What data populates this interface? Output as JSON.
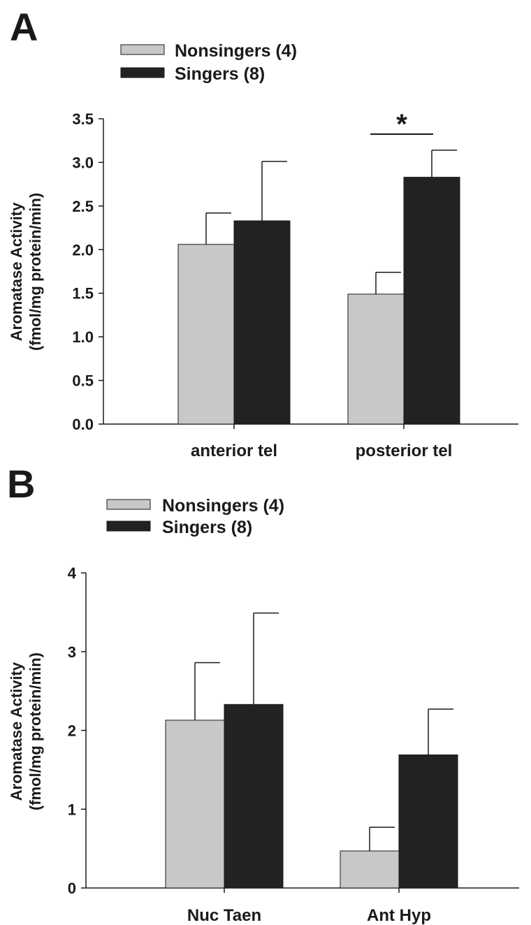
{
  "chart_data": [
    {
      "panel": "A",
      "type": "bar",
      "categories": [
        "anterior tel",
        "posterior tel"
      ],
      "series": [
        {
          "name": "Nonsingers (4)",
          "color": "#c8c8c8",
          "values": [
            2.06,
            1.49
          ],
          "errors": [
            0.36,
            0.25
          ]
        },
        {
          "name": "Singers (8)",
          "color": "#222222",
          "values": [
            2.33,
            2.83
          ],
          "errors": [
            0.68,
            0.31
          ]
        }
      ],
      "ylabel": [
        "Aromatase Activity",
        "(fmol/mg protein/min)"
      ],
      "ylim": [
        0,
        3.5
      ],
      "yticks": [
        "0.0",
        "0.5",
        "1.0",
        "1.5",
        "2.0",
        "2.5",
        "3.0",
        "3.5"
      ],
      "legend": "top-left",
      "annotation": {
        "text": "*",
        "category": "posterior tel"
      }
    },
    {
      "panel": "B",
      "type": "bar",
      "categories": [
        "Nuc Taen",
        "Ant Hyp"
      ],
      "series": [
        {
          "name": "Nonsingers (4)",
          "color": "#c8c8c8",
          "values": [
            2.13,
            0.47
          ],
          "errors": [
            0.73,
            0.3
          ]
        },
        {
          "name": "Singers (8)",
          "color": "#222222",
          "values": [
            2.33,
            1.69
          ],
          "errors": [
            1.16,
            0.58
          ]
        }
      ],
      "ylabel": [
        "Aromatase Activity",
        "(fmol/mg protein/min)"
      ],
      "ylim": [
        0,
        4
      ],
      "yticks": [
        "0",
        "1",
        "2",
        "3",
        "4"
      ],
      "legend": "top-left"
    }
  ]
}
